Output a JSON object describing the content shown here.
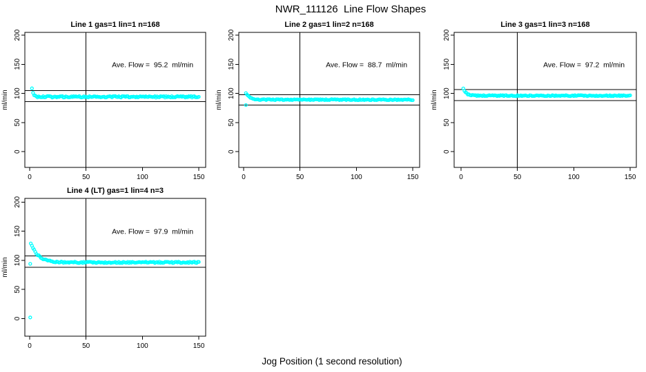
{
  "page": {
    "main_title": "NWR_111126  Line Flow Shapes",
    "x_axis_label": "Jog Position (1 second resolution)"
  },
  "chart_data": {
    "type": "scatter",
    "title": "NWR_111126  Line Flow Shapes",
    "xlabel": "Jog Position (1 second resolution)",
    "ylabel": "ml/min",
    "grid": false,
    "legend": "none",
    "point_color": "#00ffff",
    "axis_color": "#000000",
    "x_ticks": [
      0,
      50,
      100,
      150
    ],
    "y_ticks": [
      0,
      50,
      100,
      150,
      200
    ],
    "xlim": [
      -4,
      156
    ],
    "ylim": [
      -27,
      205
    ],
    "panels": [
      {
        "title": "Line 1 gas=1 lin=1 n=168",
        "n": 168,
        "ave_flow": 95.2,
        "annotation": "Ave. Flow =  95.2  ml/min",
        "ylabel": "ml/min",
        "vline_x": 50,
        "hlines": [
          104.7,
          85.7
        ],
        "trend": {
          "start_x": 2,
          "end_x": 150,
          "start_y": 110,
          "settle_y": 94.2,
          "decay_tau": 1.0,
          "noise": 1.3
        },
        "key_points": [
          [
            2,
            110
          ],
          [
            3,
            100
          ],
          [
            5,
            95
          ],
          [
            10,
            94
          ],
          [
            50,
            94
          ],
          [
            100,
            94
          ],
          [
            150,
            94
          ]
        ],
        "outliers": []
      },
      {
        "title": "Line 2 gas=1 lin=2 n=168",
        "n": 168,
        "ave_flow": 88.7,
        "annotation": "Ave. Flow =  88.7  ml/min",
        "ylabel": "ml/min",
        "vline_x": 50,
        "hlines": [
          97.6,
          79.8
        ],
        "trend": {
          "start_x": 2,
          "end_x": 150,
          "start_y": 101,
          "settle_y": 89.3,
          "decay_tau": 3.2,
          "noise": 0.9
        },
        "key_points": [
          [
            2,
            101
          ],
          [
            5,
            96
          ],
          [
            12,
            90
          ],
          [
            50,
            89
          ],
          [
            100,
            89
          ],
          [
            150,
            89
          ]
        ],
        "outliers": [
          [
            2,
            80
          ]
        ]
      },
      {
        "title": "Line 3 gas=1 lin=3 n=168",
        "n": 168,
        "ave_flow": 97.2,
        "annotation": "Ave. Flow =  97.2  ml/min",
        "ylabel": "ml/min",
        "vline_x": 50,
        "hlines": [
          106.9,
          87.5
        ],
        "trend": {
          "start_x": 2,
          "end_x": 150,
          "start_y": 108.5,
          "settle_y": 96.2,
          "decay_tau": 2.6,
          "noise": 0.9
        },
        "key_points": [
          [
            2,
            108
          ],
          [
            5,
            100
          ],
          [
            12,
            96
          ],
          [
            50,
            96
          ],
          [
            100,
            96
          ],
          [
            150,
            96
          ]
        ],
        "outliers": []
      },
      {
        "title": "Line 4 (LT) gas=1 lin=4 n=3",
        "n": 3,
        "ave_flow": 97.9,
        "annotation": "Ave. Flow =  97.9  ml/min",
        "ylabel": "ml/min",
        "vline_x": 50,
        "hlines": [
          107.7,
          88.1
        ],
        "trend": {
          "start_x": 1,
          "end_x": 150,
          "start_y": 130,
          "settle_y": 96.5,
          "decay_tau": 6.5,
          "noise": 1.2
        },
        "key_points": [
          [
            1,
            130
          ],
          [
            10,
            110
          ],
          [
            20,
            100
          ],
          [
            30,
            98
          ],
          [
            50,
            97
          ],
          [
            100,
            97
          ],
          [
            150,
            97
          ]
        ],
        "outliers": [
          [
            0.5,
            94
          ],
          [
            0.5,
            2
          ]
        ]
      }
    ]
  }
}
